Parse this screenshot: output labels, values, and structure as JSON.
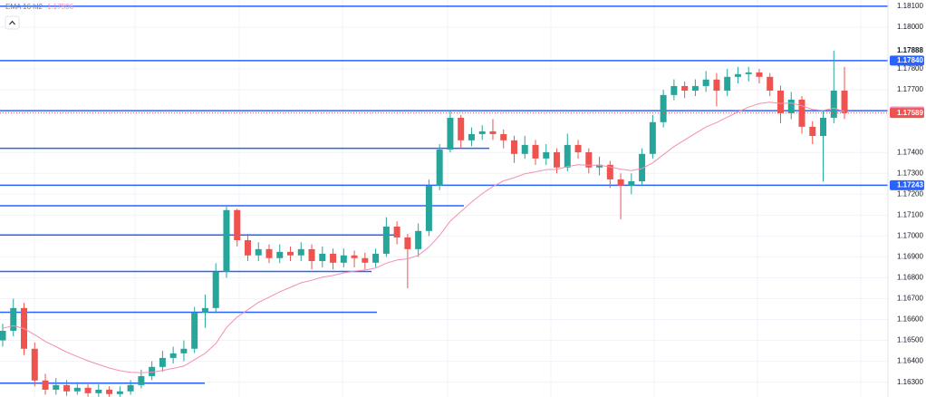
{
  "chart_data": {
    "type": "candlestick",
    "indicator": {
      "name": "EMA 16 hl2",
      "value": 1.17596,
      "color": "#f48fb1",
      "values": [
        1.16558,
        1.1657,
        1.16557,
        1.16527,
        1.16495,
        1.1647,
        1.16444,
        1.16423,
        1.16402,
        1.16385,
        1.16368,
        1.16355,
        1.16347,
        1.16345,
        1.16348,
        1.16356,
        1.16366,
        1.16377,
        1.16408,
        1.16438,
        1.16485,
        1.16562,
        1.16612,
        1.16647,
        1.16682,
        1.16707,
        1.16733,
        1.16754,
        1.16776,
        1.16788,
        1.16803,
        1.16811,
        1.16823,
        1.16832,
        1.16837,
        1.16846,
        1.1687,
        1.16885,
        1.16891,
        1.16907,
        1.16947,
        1.17003,
        1.17071,
        1.17117,
        1.17162,
        1.17203,
        1.17237,
        1.17264,
        1.17279,
        1.17298,
        1.17307,
        1.17318,
        1.17319,
        1.17333,
        1.17341,
        1.17339,
        1.17339,
        1.17331,
        1.1732,
        1.17313,
        1.17323,
        1.1735,
        1.17389,
        1.17428,
        1.1746,
        1.17491,
        1.17522,
        1.17543,
        1.17569,
        1.17594,
        1.17617,
        1.17634,
        1.17641,
        1.17635,
        1.17637,
        1.17623,
        1.17606,
        1.17601,
        1.17612,
        1.17596
      ]
    },
    "open": [
      1.165,
      1.16546,
      1.16655,
      1.1646,
      1.16308,
      1.16264,
      1.16286,
      1.16256,
      1.16273,
      1.16247,
      1.16264,
      1.16243,
      1.16256,
      1.16286,
      1.16329,
      1.16373,
      1.16416,
      1.16438,
      1.1646,
      1.16633,
      1.16655,
      1.16828,
      1.17124,
      1.1698,
      1.16907,
      1.16937,
      1.16894,
      1.16924,
      1.16907,
      1.16937,
      1.1688,
      1.16915,
      1.16872,
      1.16907,
      1.16894,
      1.16872,
      1.16915,
      1.17045,
      1.16993,
      1.16937,
      1.17024,
      1.17241,
      1.17414,
      1.17566,
      1.17458,
      1.17488,
      1.17501,
      1.17488,
      1.17458,
      1.17393,
      1.17436,
      1.17371,
      1.17401,
      1.17328,
      1.17436,
      1.17401,
      1.17328,
      1.17341,
      1.17271,
      1.17241,
      1.17262,
      1.17393,
      1.17545,
      1.17675,
      1.17718,
      1.17696,
      1.17718,
      1.17749,
      1.17696,
      1.17762,
      1.17775,
      1.17783,
      1.17762,
      1.17696,
      1.17588,
      1.17653,
      1.17523,
      1.17479,
      1.17566,
      1.17696
    ],
    "high": [
      1.1658,
      1.167,
      1.1668,
      1.1649,
      1.1634,
      1.1632,
      1.1631,
      1.163,
      1.1629,
      1.1629,
      1.1628,
      1.1628,
      1.1631,
      1.1636,
      1.164,
      1.1645,
      1.1647,
      1.165,
      1.1666,
      1.1672,
      1.1687,
      1.1714,
      1.1713,
      1.1701,
      1.1697,
      1.1696,
      1.1696,
      1.1695,
      1.1697,
      1.1696,
      1.1695,
      1.1694,
      1.1694,
      1.1693,
      1.1692,
      1.1694,
      1.1709,
      1.1707,
      1.1701,
      1.1706,
      1.1727,
      1.1744,
      1.176,
      1.1758,
      1.1752,
      1.1753,
      1.1756,
      1.1751,
      1.1748,
      1.1748,
      1.1746,
      1.1744,
      1.1742,
      1.1749,
      1.1746,
      1.1742,
      1.1738,
      1.1736,
      1.173,
      1.173,
      1.1742,
      1.1758,
      1.177,
      1.1775,
      1.1774,
      1.1775,
      1.1779,
      1.1778,
      1.178,
      1.1781,
      1.1781,
      1.178,
      1.1778,
      1.1772,
      1.1769,
      1.1767,
      1.1755,
      1.176,
      1.17888,
      1.1781
    ],
    "low": [
      1.1647,
      1.1652,
      1.1643,
      1.1628,
      1.1624,
      1.1624,
      1.16235,
      1.1624,
      1.1623,
      1.1623,
      1.1623,
      1.1623,
      1.1624,
      1.1627,
      1.1631,
      1.1635,
      1.1639,
      1.164,
      1.1644,
      1.1656,
      1.1663,
      1.168,
      1.1695,
      1.1688,
      1.1688,
      1.1687,
      1.1687,
      1.1688,
      1.1688,
      1.1684,
      1.1685,
      1.1684,
      1.1685,
      1.1685,
      1.1684,
      1.1685,
      1.169,
      1.1696,
      1.1675,
      1.169,
      1.17,
      1.1722,
      1.174,
      1.1742,
      1.1743,
      1.1746,
      1.1746,
      1.1742,
      1.1735,
      1.1737,
      1.1734,
      1.1734,
      1.173,
      1.1731,
      1.1737,
      1.173,
      1.1729,
      1.1723,
      1.1708,
      1.172,
      1.1724,
      1.1737,
      1.1752,
      1.1765,
      1.1766,
      1.1767,
      1.1769,
      1.1762,
      1.1767,
      1.1773,
      1.1774,
      1.1773,
      1.1767,
      1.1754,
      1.1756,
      1.1749,
      1.1744,
      1.1726,
      1.1754,
      1.1756
    ],
    "close": [
      1.16546,
      1.16655,
      1.1646,
      1.16308,
      1.16264,
      1.16286,
      1.16256,
      1.16273,
      1.16247,
      1.16264,
      1.16243,
      1.16256,
      1.16286,
      1.16329,
      1.16373,
      1.16416,
      1.16438,
      1.1646,
      1.16633,
      1.16655,
      1.16828,
      1.17124,
      1.1698,
      1.16907,
      1.16937,
      1.16894,
      1.16924,
      1.16907,
      1.16937,
      1.1688,
      1.16915,
      1.16872,
      1.16907,
      1.16894,
      1.16872,
      1.16915,
      1.17045,
      1.16993,
      1.16937,
      1.17024,
      1.17241,
      1.17414,
      1.17566,
      1.17458,
      1.17488,
      1.17501,
      1.17488,
      1.17458,
      1.17393,
      1.17436,
      1.17371,
      1.17401,
      1.17328,
      1.17436,
      1.17401,
      1.17328,
      1.17341,
      1.17271,
      1.17241,
      1.17262,
      1.17393,
      1.17545,
      1.17675,
      1.17718,
      1.17696,
      1.17718,
      1.17749,
      1.17696,
      1.17762,
      1.17775,
      1.17783,
      1.17762,
      1.17696,
      1.17588,
      1.17653,
      1.17523,
      1.17479,
      1.17566,
      1.17696,
      1.17589
    ],
    "up_color": "#26a69a",
    "down_color": "#ef5350",
    "levels": {
      "color": "#2962ff",
      "values": [
        1.181,
        1.1784,
        1.176,
        1.1742,
        1.17243,
        1.17145,
        1.17005,
        1.1683,
        1.16635,
        1.16295
      ]
    },
    "ylim": [
      1.16229,
      1.1813
    ],
    "yticks": [
      {
        "value": 1.181,
        "label": "1.18100"
      },
      {
        "value": 1.18,
        "label": "1.18000"
      },
      {
        "value": 1.178,
        "label": "1.17800"
      },
      {
        "value": 1.177,
        "label": "1.17700"
      },
      {
        "value": 1.174,
        "label": "1.17400"
      },
      {
        "value": 1.173,
        "label": "1.17300"
      },
      {
        "value": 1.172,
        "label": "1.17200"
      },
      {
        "value": 1.171,
        "label": "1.17100"
      },
      {
        "value": 1.17,
        "label": "1.17000"
      },
      {
        "value": 1.169,
        "label": "1.16900"
      },
      {
        "value": 1.168,
        "label": "1.16800"
      },
      {
        "value": 1.167,
        "label": "1.16700"
      },
      {
        "value": 1.166,
        "label": "1.16600"
      },
      {
        "value": 1.165,
        "label": "1.16500"
      },
      {
        "value": 1.164,
        "label": "1.16400"
      },
      {
        "value": 1.163,
        "label": "1.16300"
      }
    ],
    "price_labels": [
      {
        "value": 1.17888,
        "label": "1.17888",
        "color": "#ffffff"
      },
      {
        "value": 1.1784,
        "label": "1.17840",
        "color": "#2962ff"
      },
      {
        "value": 1.17596,
        "label": "1.17596",
        "color": "#f48fb1"
      },
      {
        "value": 1.17589,
        "label": "1.17589",
        "color": "#ef5350"
      },
      {
        "value": 1.17243,
        "label": "1.17243",
        "color": "#2962ff"
      }
    ],
    "grid": true
  }
}
